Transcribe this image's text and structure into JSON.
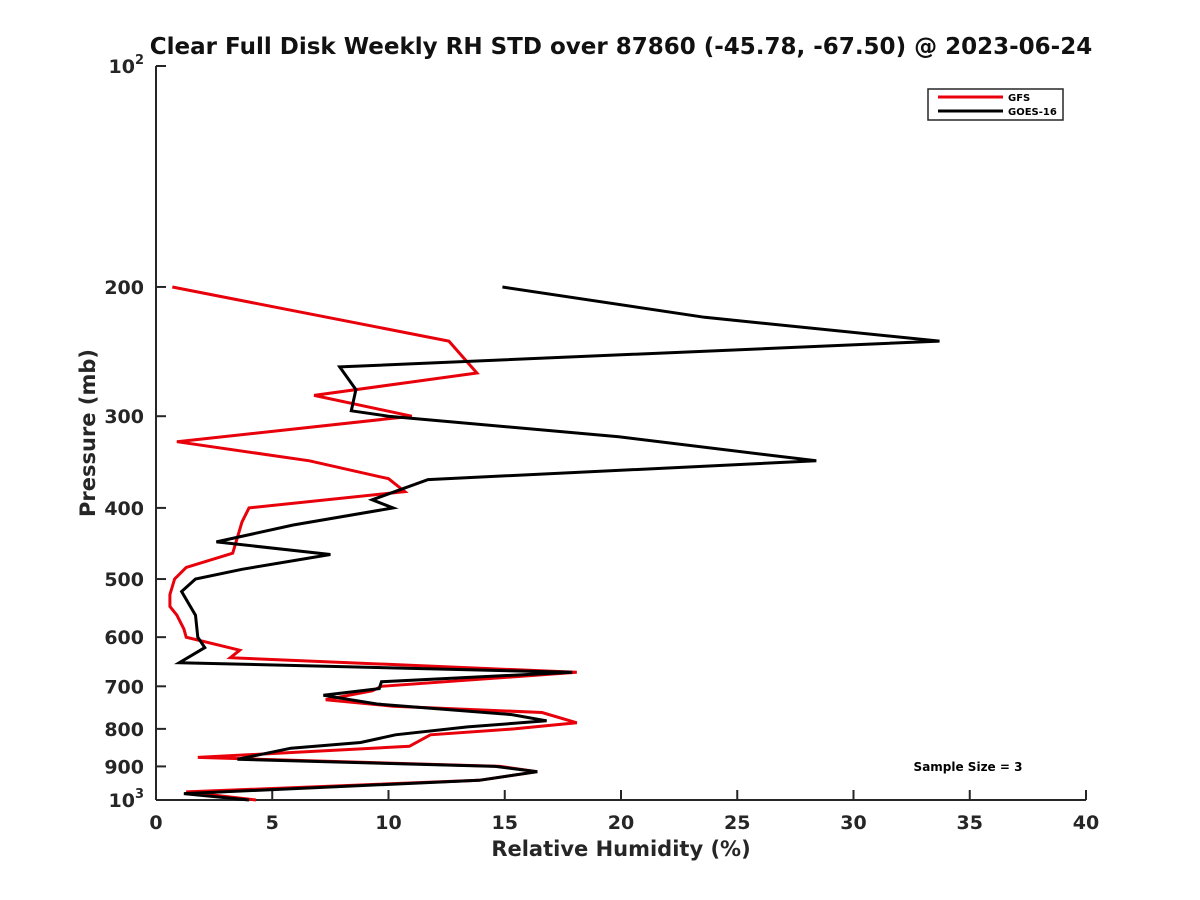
{
  "chart_data": {
    "type": "line",
    "title": "Clear Full Disk Weekly RH STD over 87860 (-45.78, -67.50) @ 2023-06-24",
    "xlabel": "Relative Humidity (%)",
    "ylabel": "Pressure (mb)",
    "xlim": [
      0,
      40
    ],
    "ylim": [
      100,
      1000
    ],
    "y_scale": "log",
    "y_reversed": true,
    "x_ticks": [
      "0",
      "5",
      "10",
      "15",
      "20",
      "25",
      "30",
      "35",
      "40"
    ],
    "y_ticks": [
      {
        "value": 100,
        "base": "10",
        "sup": "2"
      },
      {
        "value": 200,
        "label": "200"
      },
      {
        "value": 300,
        "label": "300"
      },
      {
        "value": 400,
        "label": "400"
      },
      {
        "value": 500,
        "label": "500"
      },
      {
        "value": 600,
        "label": "600"
      },
      {
        "value": 700,
        "label": "700"
      },
      {
        "value": 800,
        "label": "800"
      },
      {
        "value": 900,
        "label": "900"
      },
      {
        "value": 1000,
        "base": "10",
        "sup": "3"
      }
    ],
    "legend_position": "top-right",
    "grid": false,
    "annotation": "Sample Size = 3",
    "series": [
      {
        "name": "GFS",
        "color": "#e8000b",
        "points": [
          [
            0.7,
            200
          ],
          [
            12.6,
            237
          ],
          [
            13.8,
            262
          ],
          [
            6.8,
            281
          ],
          [
            11.0,
            300
          ],
          [
            0.9,
            325
          ],
          [
            6.6,
            345
          ],
          [
            10.0,
            365
          ],
          [
            10.7,
            380
          ],
          [
            4.0,
            400
          ],
          [
            3.7,
            418
          ],
          [
            3.3,
            461
          ],
          [
            1.3,
            482
          ],
          [
            0.8,
            500
          ],
          [
            0.6,
            525
          ],
          [
            0.6,
            545
          ],
          [
            0.9,
            560
          ],
          [
            1.2,
            585
          ],
          [
            1.3,
            600
          ],
          [
            3.6,
            625
          ],
          [
            3.2,
            640
          ],
          [
            18.1,
            670
          ],
          [
            9.7,
            700
          ],
          [
            9.3,
            710
          ],
          [
            7.3,
            730
          ],
          [
            10.2,
            745
          ],
          [
            16.6,
            760
          ],
          [
            18.1,
            785
          ],
          [
            15.4,
            800
          ],
          [
            11.8,
            815
          ],
          [
            10.9,
            845
          ],
          [
            1.8,
            875
          ],
          [
            14.8,
            900
          ],
          [
            16.4,
            915
          ],
          [
            13.9,
            940
          ],
          [
            1.3,
            975
          ],
          [
            4.3,
            1000
          ]
        ]
      },
      {
        "name": "GOES-16",
        "color": "#000000",
        "points": [
          [
            14.9,
            200
          ],
          [
            23.6,
            220
          ],
          [
            33.7,
            237
          ],
          [
            7.9,
            257
          ],
          [
            8.6,
            276
          ],
          [
            8.4,
            295
          ],
          [
            10.0,
            300
          ],
          [
            19.9,
            320
          ],
          [
            28.4,
            345
          ],
          [
            11.7,
            366
          ],
          [
            9.3,
            390
          ],
          [
            10.2,
            400
          ],
          [
            5.9,
            422
          ],
          [
            2.6,
            445
          ],
          [
            7.5,
            463
          ],
          [
            3.7,
            485
          ],
          [
            1.7,
            500
          ],
          [
            1.1,
            520
          ],
          [
            1.7,
            560
          ],
          [
            1.8,
            600
          ],
          [
            2.1,
            620
          ],
          [
            1.0,
            650
          ],
          [
            17.9,
            670
          ],
          [
            9.7,
            690
          ],
          [
            9.6,
            705
          ],
          [
            7.2,
            720
          ],
          [
            9.5,
            740
          ],
          [
            15.3,
            765
          ],
          [
            16.8,
            780
          ],
          [
            13.4,
            795
          ],
          [
            10.3,
            815
          ],
          [
            8.8,
            835
          ],
          [
            5.8,
            850
          ],
          [
            3.5,
            880
          ],
          [
            14.6,
            900
          ],
          [
            16.4,
            915
          ],
          [
            13.9,
            940
          ],
          [
            1.2,
            980
          ],
          [
            4.0,
            1000
          ]
        ]
      }
    ]
  }
}
